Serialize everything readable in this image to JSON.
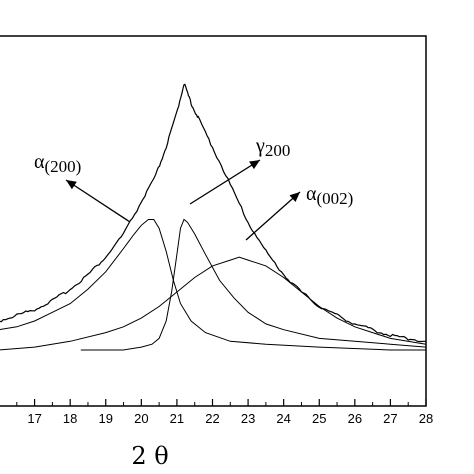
{
  "chart_data": {
    "type": "line",
    "title": "",
    "xlabel": "2 θ",
    "ylabel": "",
    "xlim": [
      16,
      28
    ],
    "ylim": [
      0,
      1
    ],
    "xticks": [
      17,
      18,
      19,
      20,
      21,
      22,
      23,
      24,
      25,
      26,
      27,
      28
    ],
    "xtick_labels": [
      "17",
      "18",
      "19",
      "20",
      "21",
      "22",
      "23",
      "24",
      "25",
      "26",
      "27",
      "28"
    ],
    "grid": false,
    "legend": "none",
    "series": [
      {
        "name": "",
        "role": "measured",
        "x": [
          16.0,
          16.5,
          17.0,
          17.5,
          18.0,
          18.5,
          19.0,
          19.5,
          20.0,
          20.4,
          20.7,
          21.0,
          21.2,
          21.4,
          21.6,
          22.0,
          22.5,
          23.0,
          23.5,
          24.0,
          24.5,
          25.0,
          25.5,
          26.0,
          26.5,
          27.0,
          27.5,
          28.0
        ],
        "y": [
          0.1,
          0.12,
          0.14,
          0.17,
          0.21,
          0.26,
          0.32,
          0.4,
          0.51,
          0.6,
          0.7,
          0.82,
          0.92,
          0.85,
          0.8,
          0.7,
          0.57,
          0.44,
          0.34,
          0.26,
          0.2,
          0.15,
          0.12,
          0.09,
          0.07,
          0.05,
          0.04,
          0.03
        ]
      },
      {
        "name": "α(200)",
        "role": "fit",
        "x": [
          16.0,
          16.5,
          17.0,
          17.5,
          18.0,
          18.5,
          19.0,
          19.5,
          19.8,
          20.0,
          20.2,
          20.35,
          20.5,
          20.7,
          20.9,
          21.1,
          21.4,
          21.8,
          22.5,
          23.5,
          25.0,
          27.0,
          28.0
        ],
        "y": [
          0.07,
          0.08,
          0.1,
          0.13,
          0.16,
          0.21,
          0.27,
          0.35,
          0.4,
          0.43,
          0.45,
          0.45,
          0.42,
          0.34,
          0.24,
          0.16,
          0.1,
          0.06,
          0.03,
          0.02,
          0.01,
          0.0,
          0.0
        ]
      },
      {
        "name": "γ(200)",
        "role": "fit",
        "x": [
          18.3,
          19.0,
          19.5,
          20.0,
          20.3,
          20.5,
          20.7,
          20.85,
          21.0,
          21.1,
          21.2,
          21.3,
          21.5,
          21.8,
          22.2,
          22.6,
          23.0,
          23.5,
          24.0,
          25.0,
          26.0,
          27.0,
          28.0
        ],
        "y": [
          0.0,
          0.0,
          0.0,
          0.01,
          0.02,
          0.04,
          0.1,
          0.2,
          0.33,
          0.42,
          0.45,
          0.44,
          0.4,
          0.33,
          0.24,
          0.18,
          0.13,
          0.09,
          0.07,
          0.04,
          0.03,
          0.02,
          0.01
        ]
      },
      {
        "name": "α(002)",
        "role": "fit",
        "x": [
          16.0,
          17.0,
          18.0,
          19.0,
          19.5,
          20.0,
          20.5,
          21.0,
          21.5,
          22.0,
          22.5,
          22.75,
          23.0,
          23.5,
          24.0,
          24.5,
          25.0,
          25.5,
          26.0,
          26.5,
          27.0,
          28.0
        ],
        "y": [
          0.0,
          0.01,
          0.03,
          0.06,
          0.08,
          0.11,
          0.15,
          0.2,
          0.25,
          0.29,
          0.31,
          0.32,
          0.31,
          0.29,
          0.25,
          0.2,
          0.15,
          0.11,
          0.08,
          0.06,
          0.04,
          0.02
        ]
      }
    ],
    "annotations": [
      {
        "base": "α",
        "sub": "(200)",
        "points_to": "α(200)"
      },
      {
        "base": "γ",
        "sub": "200",
        "points_to": "γ(200)"
      },
      {
        "base": "α",
        "sub": "(002)",
        "points_to": "α(002)"
      }
    ]
  }
}
